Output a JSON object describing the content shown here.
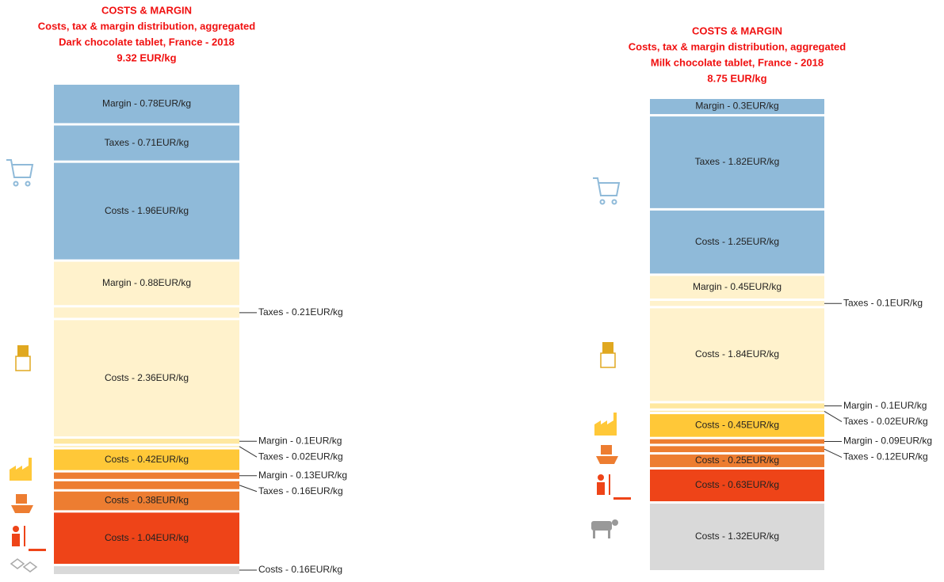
{
  "chart_data": [
    {
      "type": "stacked-column",
      "title_lines": [
        "COSTS & MARGIN",
        "Costs, tax & margin distribution, aggregated",
        "Dark chocolate tablet, France  - 2018",
        "9.32  EUR/kg"
      ],
      "values": [
        0.16,
        1.04,
        0.38,
        0.16,
        0.13,
        0.42,
        0.02,
        0.1,
        2.36,
        0.21,
        0.88,
        1.96,
        0.71,
        0.78
      ],
      "value_labels": [
        "Costs - 0.16EUR/kg",
        "Costs - 1.04EUR/kg",
        "Costs - 0.38EUR/kg",
        "Taxes - 0.16EUR/kg",
        "Margin - 0.13EUR/kg",
        "Costs - 0.42EUR/kg",
        "Taxes - 0.02EUR/kg",
        "Margin - 0.1EUR/kg",
        "Costs - 2.36EUR/kg",
        "Taxes - 0.21EUR/kg",
        "Margin - 0.88EUR/kg",
        "Costs - 1.96EUR/kg",
        "Taxes - 0.71EUR/kg",
        "Margin - 0.78EUR/kg"
      ],
      "colors": [
        "#d9d9d9",
        "#ee4418",
        "#ed7d31",
        "#ed7d31",
        "#ed7d31",
        "#ffc838",
        "#ffe8a0",
        "#ffe8a0",
        "#fff2cc",
        "#fff2cc",
        "#fff2cc",
        "#8fbad9",
        "#8fbad9",
        "#8fbad9"
      ]
    },
    {
      "type": "stacked-column",
      "title_lines": [
        "COSTS & MARGIN",
        "Costs, tax & margin distribution, aggregated",
        "Milk chocolate tablet, France  - 2018",
        "8.75  EUR/kg"
      ],
      "values": [
        1.32,
        0.63,
        0.25,
        0.12,
        0.09,
        0.45,
        0.02,
        0.1,
        1.84,
        0.1,
        0.45,
        1.25,
        1.82,
        0.3
      ],
      "value_labels": [
        "Costs - 1.32EUR/kg",
        "Costs - 0.63EUR/kg",
        "Costs - 0.25EUR/kg",
        "Taxes - 0.12EUR/kg",
        "Margin - 0.09EUR/kg",
        "Costs - 0.45EUR/kg",
        "Taxes - 0.02EUR/kg",
        "Margin - 0.1EUR/kg",
        "Costs - 1.84EUR/kg",
        "Taxes - 0.1EUR/kg",
        "Margin - 0.45EUR/kg",
        "Costs - 1.25EUR/kg",
        "Taxes - 1.82EUR/kg",
        "Margin - 0.3EUR/kg"
      ],
      "colors": [
        "#d9d9d9",
        "#ee4418",
        "#ed7d31",
        "#ed7d31",
        "#ed7d31",
        "#ffc838",
        "#ffe8a0",
        "#ffe8a0",
        "#fff2cc",
        "#fff2cc",
        "#fff2cc",
        "#8fbad9",
        "#8fbad9",
        "#8fbad9"
      ]
    }
  ]
}
